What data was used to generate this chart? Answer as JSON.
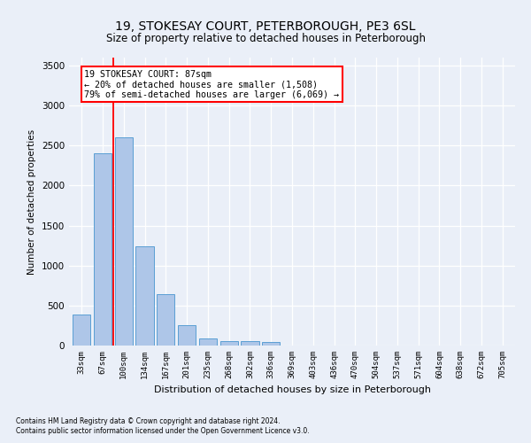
{
  "title": "19, STOKESAY COURT, PETERBOROUGH, PE3 6SL",
  "subtitle": "Size of property relative to detached houses in Peterborough",
  "xlabel": "Distribution of detached houses by size in Peterborough",
  "ylabel": "Number of detached properties",
  "footer1": "Contains HM Land Registry data © Crown copyright and database right 2024.",
  "footer2": "Contains public sector information licensed under the Open Government Licence v3.0.",
  "categories": [
    "33sqm",
    "67sqm",
    "100sqm",
    "134sqm",
    "167sqm",
    "201sqm",
    "235sqm",
    "268sqm",
    "302sqm",
    "336sqm",
    "369sqm",
    "403sqm",
    "436sqm",
    "470sqm",
    "504sqm",
    "537sqm",
    "571sqm",
    "604sqm",
    "638sqm",
    "672sqm",
    "705sqm"
  ],
  "values": [
    390,
    2400,
    2600,
    1240,
    640,
    250,
    90,
    55,
    55,
    40,
    0,
    0,
    0,
    0,
    0,
    0,
    0,
    0,
    0,
    0,
    0
  ],
  "bar_color": "#aec6e8",
  "bar_edge_color": "#5a9fd4",
  "vline_x": 1.5,
  "vline_color": "red",
  "annotation_line1": "19 STOKESAY COURT: 87sqm",
  "annotation_line2": "← 20% of detached houses are smaller (1,508)",
  "annotation_line3": "79% of semi-detached houses are larger (6,069) →",
  "annotation_box_color": "white",
  "annotation_box_edge_color": "red",
  "ylim": [
    0,
    3600
  ],
  "yticks": [
    0,
    500,
    1000,
    1500,
    2000,
    2500,
    3000,
    3500
  ],
  "background_color": "#eaeff8",
  "plot_bg_color": "#eaeff8",
  "grid_color": "white",
  "title_fontsize": 10,
  "subtitle_fontsize": 8.5
}
